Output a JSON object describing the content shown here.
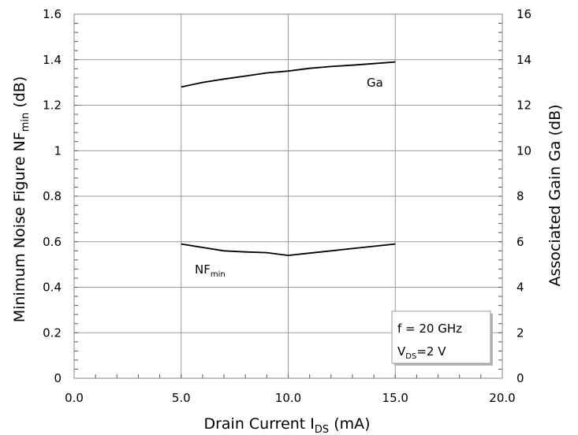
{
  "chart_data": {
    "type": "line",
    "xlabel": {
      "main": "Drain Current I",
      "sub": "DS",
      "unit": " (mA)"
    },
    "ylabel_left": {
      "main": "Minimum Noise Figure NF",
      "sub": "min",
      "unit": " (dB)"
    },
    "ylabel_right": "Associated Gain Ga (dB)",
    "xlim": [
      0,
      20
    ],
    "ylim_left": [
      0,
      1.6
    ],
    "ylim_right": [
      0,
      16
    ],
    "x_ticks": [
      0,
      5,
      10,
      15,
      20
    ],
    "x_tick_labels": [
      "0.0",
      "5.0",
      "10.0",
      "15.0",
      "20.0"
    ],
    "y_left_ticks": [
      0,
      0.2,
      0.4,
      0.6,
      0.8,
      1,
      1.2,
      1.4,
      1.6
    ],
    "y_left_tick_labels": [
      "0",
      "0.2",
      "0.4",
      "0.6",
      "0.8",
      "1",
      "1.2",
      "1.4",
      "1.6"
    ],
    "y_right_ticks": [
      0,
      2,
      4,
      6,
      8,
      10,
      12,
      14,
      16
    ],
    "y_right_tick_labels": [
      "0",
      "2",
      "4",
      "6",
      "8",
      "10",
      "12",
      "14",
      "16"
    ],
    "grid": true,
    "series": [
      {
        "name": "Ga",
        "axis": "right",
        "x": [
          5,
          6,
          7,
          8,
          9,
          10,
          11,
          12,
          13,
          14,
          15
        ],
        "y": [
          12.8,
          13.0,
          13.15,
          13.28,
          13.42,
          13.5,
          13.62,
          13.7,
          13.76,
          13.83,
          13.9
        ]
      },
      {
        "name": "NFmin",
        "label_main": "NF",
        "label_sub": "min",
        "axis": "left",
        "x": [
          5,
          6,
          7,
          8,
          9,
          10,
          11,
          12,
          13,
          14,
          15
        ],
        "y": [
          0.59,
          0.575,
          0.56,
          0.555,
          0.552,
          0.54,
          0.55,
          0.56,
          0.57,
          0.58,
          0.59
        ]
      }
    ],
    "conditions": {
      "line1": "f = 20 GHz",
      "line2_main": "V",
      "line2_sub": "DS",
      "line2_rest": "=2 V"
    }
  }
}
